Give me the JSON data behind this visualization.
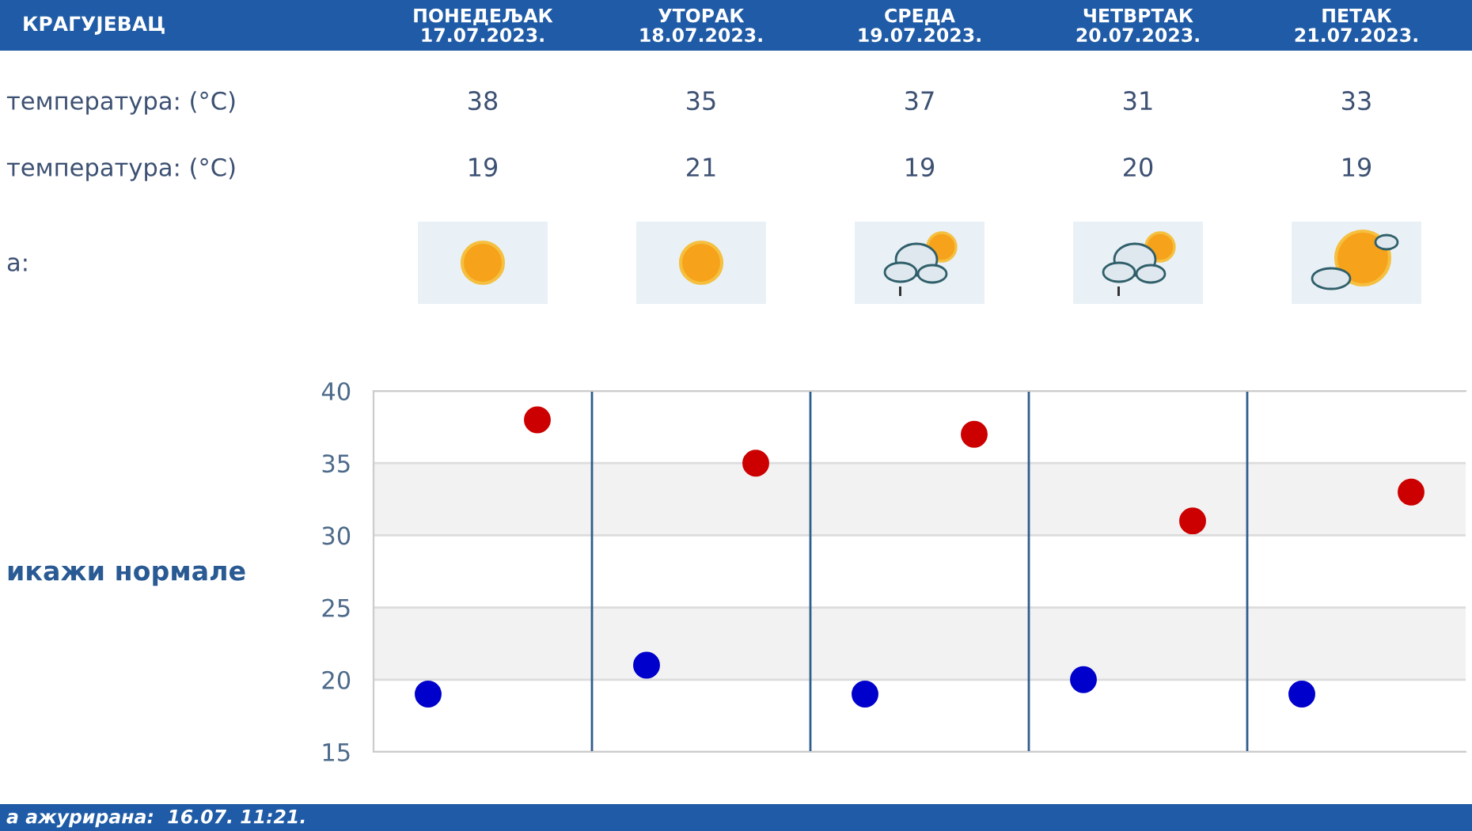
{
  "chart_data": {
    "type": "scatter",
    "title": "КРАГУЈЕВАЦ",
    "categories": [
      null,
      null,
      null,
      null,
      null
    ],
    "series": [
      {
        "color": "#cc0000",
        "values": [
          38,
          35,
          37,
          31,
          33
        ]
      },
      {
        "color": "#0000cc",
        "values": [
          19,
          21,
          19,
          20,
          19
        ]
      }
    ],
    "ylim": [
      15,
      40
    ],
    "yticks": [
      15,
      20,
      25,
      30,
      35,
      40
    ],
    "grid": true,
    "tick_labels": "y",
    "bands": [
      {
        "axis": "y",
        "from": 20,
        "to": 25,
        "color": "#f2f2f2"
      },
      {
        "axis": "y",
        "from": 30,
        "to": 35,
        "color": "#f2f2f2"
      }
    ],
    "marker": "circle",
    "data_labels": true,
    "annotations": [
      "ПОНЕДЕЉАК\n17.07.2023.",
      "УТОРАК\n18.07.2023.",
      "СРЕДА\n19.07.2023.",
      "ЧЕТВРТАК\n20.07.2023.",
      "ПЕТАК\n21.07.2023.",
      "температура: (°C)",
      "температура: (°C)",
      "а:",
      "икажи нормале",
      "а ажурирана:  16.07. 11:21."
    ]
  }
}
